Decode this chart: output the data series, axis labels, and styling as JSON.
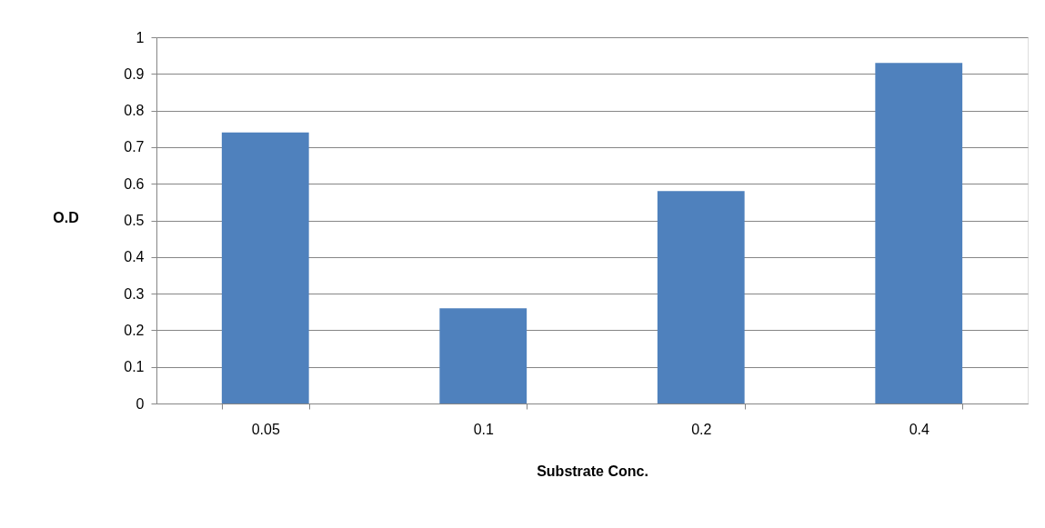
{
  "chart_data": {
    "type": "bar",
    "xlabel": "Substrate Conc.",
    "ylabel": "O.D",
    "categories": [
      "0.05",
      "0.1",
      "0.2",
      "0.4"
    ],
    "values": [
      0.74,
      0.26,
      0.58,
      0.93
    ],
    "color": "#4f81bd",
    "ylim": [
      0,
      1
    ],
    "yticks": [
      0,
      0.1,
      0.2,
      0.3,
      0.4,
      0.5,
      0.6,
      0.7,
      0.8,
      0.9,
      1
    ],
    "grid": "y"
  }
}
